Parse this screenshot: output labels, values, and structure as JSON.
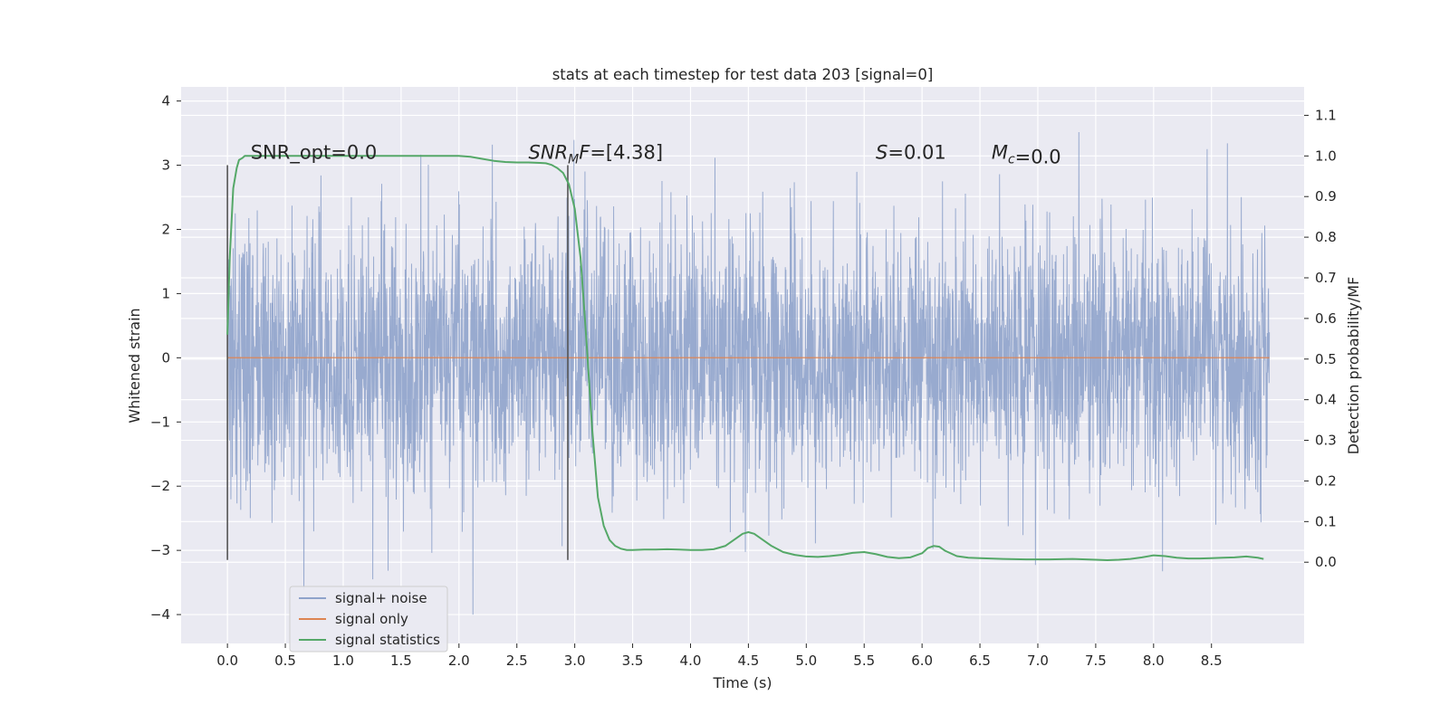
{
  "chart_data": {
    "type": "line",
    "title": "stats at each timestep for test data 203 [signal=0]",
    "xlabel": "Time (s)",
    "ylabel_left": "Whitened strain",
    "ylabel_right": "Detection probability/MF",
    "xlim": [
      -0.4,
      9.3
    ],
    "ylim_left": [
      -4.45,
      4.22
    ],
    "ylim_right": [
      -0.2,
      1.17
    ],
    "xticks": [
      "0.0",
      "0.5",
      "1.0",
      "1.5",
      "2.0",
      "2.5",
      "3.0",
      "3.5",
      "4.0",
      "4.5",
      "5.0",
      "5.5",
      "6.0",
      "6.5",
      "7.0",
      "7.5",
      "8.0",
      "8.5"
    ],
    "yticks_left": [
      "4",
      "3",
      "2",
      "1",
      "0",
      "−1",
      "−2",
      "−3",
      "−4"
    ],
    "yticks_right": [
      "1.1",
      "1.0",
      "0.9",
      "0.8",
      "0.7",
      "0.6",
      "0.5",
      "0.4",
      "0.3",
      "0.2",
      "0.1",
      "0.0"
    ],
    "grid": true,
    "legend_position": "lower-left",
    "colors": {
      "noise": "#8fa3cb",
      "signal": "#dd8452",
      "stats": "#55a868",
      "vline": "#555555",
      "background": "#eaeaf2",
      "grid": "#ffffff"
    },
    "series": [
      {
        "name": "signal+ noise",
        "axis": "left",
        "kind": "dense-noise",
        "x_range": [
          0.0,
          9.0
        ],
        "std": 1.0,
        "min": -4.0,
        "max": 3.85
      },
      {
        "name": "signal only",
        "axis": "left",
        "x": [
          0.0,
          9.0
        ],
        "y": [
          0.0,
          0.0
        ]
      },
      {
        "name": "signal statistics",
        "axis": "right",
        "x": [
          0.0,
          0.02,
          0.05,
          0.08,
          0.1,
          0.13,
          0.15,
          0.2,
          0.3,
          0.5,
          1.0,
          1.5,
          1.8,
          2.0,
          2.1,
          2.2,
          2.3,
          2.4,
          2.5,
          2.6,
          2.7,
          2.75,
          2.8,
          2.85,
          2.9,
          2.95,
          3.0,
          3.05,
          3.1,
          3.15,
          3.2,
          3.25,
          3.3,
          3.35,
          3.4,
          3.45,
          3.5,
          3.6,
          3.7,
          3.8,
          3.9,
          4.0,
          4.1,
          4.2,
          4.3,
          4.4,
          4.45,
          4.5,
          4.55,
          4.6,
          4.7,
          4.8,
          4.9,
          5.0,
          5.1,
          5.2,
          5.3,
          5.4,
          5.5,
          5.6,
          5.7,
          5.8,
          5.9,
          6.0,
          6.05,
          6.1,
          6.15,
          6.2,
          6.3,
          6.4,
          6.5,
          6.7,
          6.9,
          7.1,
          7.3,
          7.5,
          7.6,
          7.7,
          7.8,
          7.9,
          8.0,
          8.1,
          8.2,
          8.3,
          8.4,
          8.5,
          8.6,
          8.7,
          8.8,
          8.9,
          8.95
        ],
        "y": [
          0.56,
          0.75,
          0.92,
          0.97,
          0.99,
          0.995,
          1.0,
          1.0,
          1.0,
          1.0,
          1.0,
          1.0,
          1.0,
          1.0,
          0.998,
          0.993,
          0.988,
          0.985,
          0.984,
          0.984,
          0.983,
          0.982,
          0.978,
          0.97,
          0.958,
          0.93,
          0.87,
          0.75,
          0.55,
          0.33,
          0.16,
          0.09,
          0.055,
          0.04,
          0.033,
          0.03,
          0.03,
          0.031,
          0.031,
          0.032,
          0.031,
          0.03,
          0.03,
          0.032,
          0.04,
          0.06,
          0.07,
          0.074,
          0.07,
          0.06,
          0.04,
          0.025,
          0.018,
          0.014,
          0.013,
          0.015,
          0.018,
          0.023,
          0.025,
          0.02,
          0.013,
          0.01,
          0.012,
          0.022,
          0.035,
          0.04,
          0.038,
          0.028,
          0.015,
          0.011,
          0.01,
          0.008,
          0.007,
          0.007,
          0.008,
          0.006,
          0.005,
          0.006,
          0.008,
          0.012,
          0.017,
          0.015,
          0.011,
          0.009,
          0.009,
          0.01,
          0.011,
          0.012,
          0.014,
          0.011,
          0.008
        ]
      }
    ],
    "vlines": [
      {
        "x": 0.0,
        "y_from": -3.15,
        "y_to": 3.0,
        "axis": "left"
      },
      {
        "x": 2.94,
        "y_from": -3.15,
        "y_to": 3.0,
        "axis": "left"
      }
    ],
    "annotations": [
      {
        "id": "snr-opt",
        "prefix": "SNR_opt",
        "rest": "=0.0",
        "x": 0.2,
        "y": 3.1
      },
      {
        "id": "snr-mf",
        "prefix": "SNR",
        "sub": "M",
        "mid": "F",
        "rest": "=[4.38]",
        "x": 2.6,
        "y": 3.1
      },
      {
        "id": "s",
        "prefix": "S",
        "rest": "=0.01",
        "x": 5.6,
        "y": 3.1
      },
      {
        "id": "mc",
        "prefix": "M",
        "sub": "c",
        "rest": "=0.0",
        "x": 6.6,
        "y": 3.1
      }
    ]
  }
}
